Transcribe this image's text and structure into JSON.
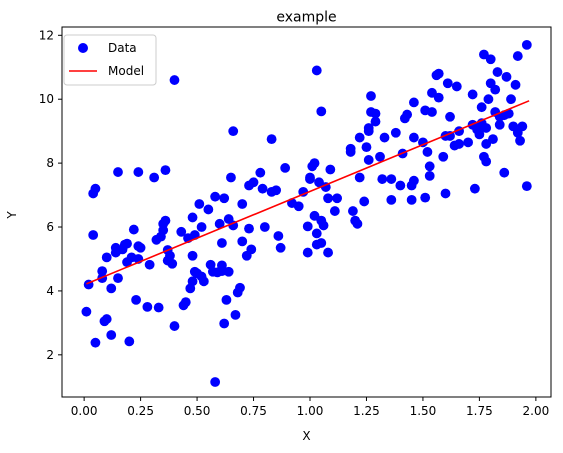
{
  "chart_data": {
    "type": "scatter",
    "title": "example",
    "xlabel": "X",
    "ylabel": "Y",
    "xlim": [
      -0.098,
      2.067
    ],
    "ylim": [
      0.68,
      12.26
    ],
    "xticks": [
      0.0,
      0.25,
      0.5,
      0.75,
      1.0,
      1.25,
      1.5,
      1.75,
      2.0
    ],
    "xtick_labels": [
      "0.00",
      "0.25",
      "0.50",
      "0.75",
      "1.00",
      "1.25",
      "1.50",
      "1.75",
      "2.00"
    ],
    "yticks": [
      2,
      4,
      6,
      8,
      10,
      12
    ],
    "ytick_labels": [
      "2",
      "4",
      "6",
      "8",
      "10",
      "12"
    ],
    "grid": false,
    "legend": {
      "placement": "top-left",
      "entries": [
        "Data",
        "Model"
      ]
    },
    "series": [
      {
        "name": "Data",
        "kind": "scatter",
        "color": "#0000ff",
        "points": [
          [
            0.02,
            4.2
          ],
          [
            0.01,
            3.35
          ],
          [
            0.04,
            7.05
          ],
          [
            0.05,
            7.2
          ],
          [
            0.04,
            5.75
          ],
          [
            0.05,
            2.38
          ],
          [
            0.08,
            4.62
          ],
          [
            0.08,
            4.4
          ],
          [
            0.1,
            5.05
          ],
          [
            0.09,
            3.05
          ],
          [
            0.1,
            3.12
          ],
          [
            0.12,
            2.62
          ],
          [
            0.12,
            4.08
          ],
          [
            0.14,
            5.2
          ],
          [
            0.14,
            5.35
          ],
          [
            0.15,
            4.4
          ],
          [
            0.15,
            7.72
          ],
          [
            0.17,
            5.3
          ],
          [
            0.18,
            5.45
          ],
          [
            0.19,
            5.48
          ],
          [
            0.19,
            4.9
          ],
          [
            0.2,
            2.42
          ],
          [
            0.21,
            5.05
          ],
          [
            0.22,
            5.92
          ],
          [
            0.23,
            3.72
          ],
          [
            0.24,
            5.4
          ],
          [
            0.24,
            5.0
          ],
          [
            0.24,
            7.72
          ],
          [
            0.25,
            5.35
          ],
          [
            0.28,
            3.5
          ],
          [
            0.29,
            4.82
          ],
          [
            0.31,
            7.55
          ],
          [
            0.32,
            5.6
          ],
          [
            0.33,
            3.48
          ],
          [
            0.34,
            5.7
          ],
          [
            0.35,
            5.9
          ],
          [
            0.35,
            6.1
          ],
          [
            0.36,
            6.2
          ],
          [
            0.36,
            7.78
          ],
          [
            0.37,
            5.28
          ],
          [
            0.37,
            4.95
          ],
          [
            0.38,
            5.1
          ],
          [
            0.39,
            4.85
          ],
          [
            0.4,
            10.6
          ],
          [
            0.4,
            2.9
          ],
          [
            0.43,
            5.85
          ],
          [
            0.44,
            3.55
          ],
          [
            0.45,
            3.65
          ],
          [
            0.46,
            5.65
          ],
          [
            0.47,
            4.08
          ],
          [
            0.48,
            4.3
          ],
          [
            0.48,
            6.3
          ],
          [
            0.48,
            5.1
          ],
          [
            0.49,
            4.6
          ],
          [
            0.49,
            5.75
          ],
          [
            0.5,
            4.55
          ],
          [
            0.51,
            6.72
          ],
          [
            0.52,
            6.0
          ],
          [
            0.52,
            4.45
          ],
          [
            0.53,
            4.3
          ],
          [
            0.55,
            6.55
          ],
          [
            0.56,
            4.82
          ],
          [
            0.57,
            4.6
          ],
          [
            0.58,
            1.15
          ],
          [
            0.58,
            6.95
          ],
          [
            0.59,
            4.58
          ],
          [
            0.6,
            6.1
          ],
          [
            0.61,
            5.5
          ],
          [
            0.61,
            4.8
          ],
          [
            0.61,
            4.62
          ],
          [
            0.62,
            2.98
          ],
          [
            0.62,
            6.9
          ],
          [
            0.63,
            3.72
          ],
          [
            0.64,
            6.25
          ],
          [
            0.64,
            4.6
          ],
          [
            0.65,
            7.55
          ],
          [
            0.66,
            9.0
          ],
          [
            0.66,
            6.05
          ],
          [
            0.67,
            3.25
          ],
          [
            0.68,
            3.95
          ],
          [
            0.69,
            4.1
          ],
          [
            0.7,
            6.72
          ],
          [
            0.7,
            5.55
          ],
          [
            0.72,
            5.1
          ],
          [
            0.73,
            7.3
          ],
          [
            0.73,
            5.95
          ],
          [
            0.74,
            5.3
          ],
          [
            0.75,
            7.4
          ],
          [
            0.78,
            7.7
          ],
          [
            0.79,
            7.2
          ],
          [
            0.8,
            6.0
          ],
          [
            0.83,
            7.1
          ],
          [
            0.83,
            8.75
          ],
          [
            0.85,
            7.15
          ],
          [
            0.86,
            5.72
          ],
          [
            0.87,
            5.35
          ],
          [
            0.89,
            7.85
          ],
          [
            0.92,
            6.75
          ],
          [
            0.95,
            6.65
          ],
          [
            0.97,
            7.1
          ],
          [
            0.99,
            6.02
          ],
          [
            0.99,
            5.2
          ],
          [
            1.0,
            7.55
          ],
          [
            1.0,
            7.5
          ],
          [
            1.01,
            7.9
          ],
          [
            1.02,
            8.0
          ],
          [
            1.02,
            6.35
          ],
          [
            1.03,
            5.45
          ],
          [
            1.03,
            5.8
          ],
          [
            1.03,
            10.9
          ],
          [
            1.04,
            7.4
          ],
          [
            1.05,
            5.5
          ],
          [
            1.05,
            9.62
          ],
          [
            1.05,
            6.2
          ],
          [
            1.06,
            6.05
          ],
          [
            1.07,
            7.25
          ],
          [
            1.08,
            5.2
          ],
          [
            1.08,
            6.9
          ],
          [
            1.09,
            7.8
          ],
          [
            1.11,
            6.5
          ],
          [
            1.12,
            6.9
          ],
          [
            1.18,
            8.45
          ],
          [
            1.18,
            8.35
          ],
          [
            1.19,
            6.5
          ],
          [
            1.2,
            6.2
          ],
          [
            1.21,
            6.1
          ],
          [
            1.22,
            7.55
          ],
          [
            1.22,
            8.8
          ],
          [
            1.24,
            6.8
          ],
          [
            1.25,
            8.5
          ],
          [
            1.26,
            9.1
          ],
          [
            1.26,
            9.0
          ],
          [
            1.26,
            8.1
          ],
          [
            1.27,
            10.1
          ],
          [
            1.27,
            9.6
          ],
          [
            1.29,
            9.55
          ],
          [
            1.29,
            9.3
          ],
          [
            1.31,
            8.2
          ],
          [
            1.32,
            7.5
          ],
          [
            1.33,
            8.8
          ],
          [
            1.36,
            7.5
          ],
          [
            1.36,
            6.85
          ],
          [
            1.38,
            8.95
          ],
          [
            1.4,
            7.3
          ],
          [
            1.41,
            8.3
          ],
          [
            1.42,
            9.4
          ],
          [
            1.43,
            9.52
          ],
          [
            1.45,
            7.3
          ],
          [
            1.45,
            6.85
          ],
          [
            1.46,
            8.8
          ],
          [
            1.46,
            7.45
          ],
          [
            1.46,
            9.9
          ],
          [
            1.5,
            8.65
          ],
          [
            1.51,
            9.65
          ],
          [
            1.51,
            6.92
          ],
          [
            1.52,
            8.35
          ],
          [
            1.53,
            7.9
          ],
          [
            1.53,
            7.6
          ],
          [
            1.54,
            9.6
          ],
          [
            1.54,
            10.2
          ],
          [
            1.56,
            10.75
          ],
          [
            1.57,
            10.8
          ],
          [
            1.57,
            10.05
          ],
          [
            1.59,
            8.2
          ],
          [
            1.6,
            8.85
          ],
          [
            1.6,
            7.05
          ],
          [
            1.61,
            10.5
          ],
          [
            1.62,
            9.45
          ],
          [
            1.62,
            8.85
          ],
          [
            1.64,
            8.55
          ],
          [
            1.65,
            10.4
          ],
          [
            1.66,
            8.6
          ],
          [
            1.66,
            9.0
          ],
          [
            1.7,
            8.65
          ],
          [
            1.72,
            9.2
          ],
          [
            1.72,
            10.15
          ],
          [
            1.73,
            7.2
          ],
          [
            1.74,
            9.05
          ],
          [
            1.75,
            8.9
          ],
          [
            1.76,
            9.25
          ],
          [
            1.76,
            9.75
          ],
          [
            1.77,
            8.2
          ],
          [
            1.77,
            11.4
          ],
          [
            1.78,
            8.05
          ],
          [
            1.78,
            9.1
          ],
          [
            1.78,
            8.6
          ],
          [
            1.79,
            10.0
          ],
          [
            1.8,
            11.25
          ],
          [
            1.8,
            10.5
          ],
          [
            1.81,
            8.75
          ],
          [
            1.82,
            10.3
          ],
          [
            1.82,
            9.6
          ],
          [
            1.83,
            10.85
          ],
          [
            1.84,
            9.2
          ],
          [
            1.84,
            9.45
          ],
          [
            1.86,
            9.5
          ],
          [
            1.86,
            7.7
          ],
          [
            1.87,
            10.7
          ],
          [
            1.88,
            9.55
          ],
          [
            1.89,
            10.0
          ],
          [
            1.9,
            9.15
          ],
          [
            1.91,
            10.45
          ],
          [
            1.92,
            8.95
          ],
          [
            1.92,
            11.35
          ],
          [
            1.93,
            8.7
          ],
          [
            1.94,
            9.15
          ],
          [
            1.96,
            11.7
          ],
          [
            1.96,
            7.28
          ]
        ]
      },
      {
        "name": "Model",
        "kind": "line",
        "color": "#ff0000",
        "x": [
          0.01,
          1.97
        ],
        "y": [
          4.22,
          9.95
        ]
      }
    ]
  }
}
